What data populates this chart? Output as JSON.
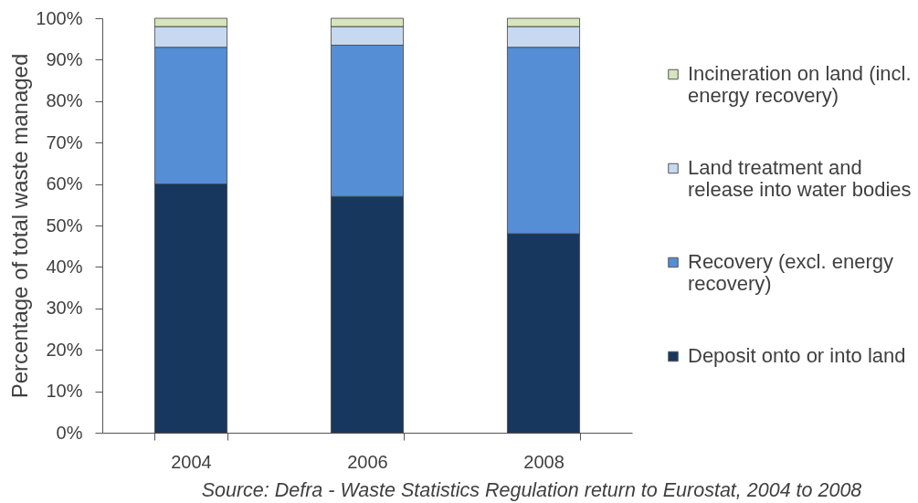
{
  "chart_data": {
    "type": "bar",
    "stacked": true,
    "ylabel": "Percentage of total waste managed",
    "categories": [
      "2004",
      "2006",
      "2008"
    ],
    "series": [
      {
        "name": "Deposit onto or into land",
        "color": "#17375e",
        "values": [
          60,
          57,
          48
        ]
      },
      {
        "name": "Recovery (excl. energy recovery)",
        "color": "#558ed5",
        "values": [
          33,
          36.5,
          45
        ]
      },
      {
        "name": "Land treatment and release into water bodies",
        "color": "#c6d9f1",
        "values": [
          5,
          4.5,
          5
        ]
      },
      {
        "name": "Incineration on land (incl. energy recovery)",
        "color": "#d7e4bd",
        "values": [
          2,
          2,
          2
        ]
      }
    ],
    "ylim": [
      0,
      100
    ],
    "yticks": [
      {
        "value": 0,
        "label": "0%"
      },
      {
        "value": 10,
        "label": "10%"
      },
      {
        "value": 20,
        "label": "20%"
      },
      {
        "value": 30,
        "label": "30%"
      },
      {
        "value": 40,
        "label": "40%"
      },
      {
        "value": 50,
        "label": "50%"
      },
      {
        "value": 60,
        "label": "60%"
      },
      {
        "value": 70,
        "label": "70%"
      },
      {
        "value": 80,
        "label": "80%"
      },
      {
        "value": 90,
        "label": "90%"
      },
      {
        "value": 100,
        "label": "100%"
      }
    ],
    "legend": "right",
    "annotations": [
      "Source: Defra - Waste Statistics Regulation return to Eurostat, 2004 to 2008"
    ]
  }
}
